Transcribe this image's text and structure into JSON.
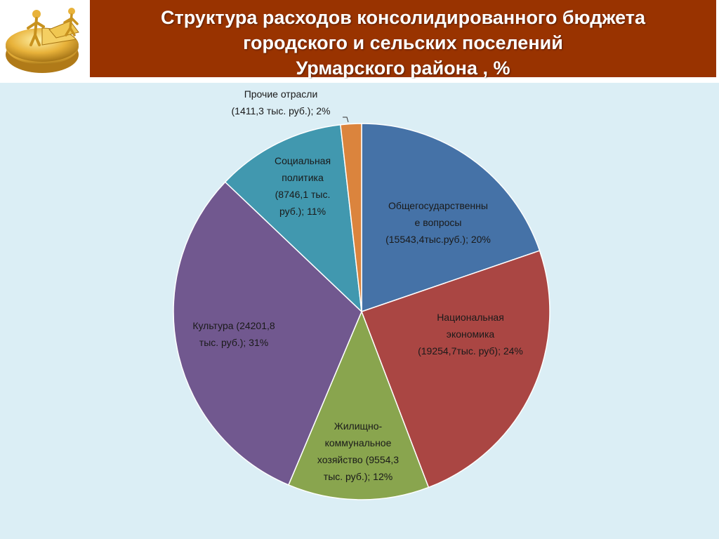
{
  "header": {
    "title_lines": [
      "Структура расходов консолидированного  бюджета",
      "городского и сельских поселений",
      "Урмарского района , %"
    ],
    "bar_color": "#993300",
    "logo_icon": "gold-pie-chart-figures-icon"
  },
  "chart_data": {
    "type": "pie",
    "title": "Структура расходов консолидированного  бюджета городского и сельских поселений Урмарского района , %",
    "legend": "none (data labels on slices)",
    "slices": [
      {
        "amount": 15543.4,
        "percent": 20,
        "color": "#4572a7",
        "label_lines": [
          "Общегосударственны",
          "е вопросы",
          "(15543,4тыс.руб.); 20%"
        ]
      },
      {
        "amount": 19254.7,
        "percent": 24,
        "color": "#aa4643",
        "label_lines": [
          "Национальная",
          "экономика",
          "(19254,7тыс. руб); 24%"
        ]
      },
      {
        "amount": 9554.3,
        "percent": 12,
        "color": "#89a54e",
        "label_lines": [
          "Жилищно-",
          "коммунальное",
          "хозяйство  (9554,3",
          "тыс. руб.); 12%"
        ]
      },
      {
        "amount": 24201.8,
        "percent": 31,
        "color": "#71588f",
        "label_lines": [
          "Культура  (24201,8",
          "тыс. руб.); 31%"
        ]
      },
      {
        "amount": 8746.1,
        "percent": 11,
        "color": "#4198af",
        "label_lines": [
          "Социальная",
          "политика",
          "(8746,1 тыс.",
          "руб.); 11%"
        ]
      },
      {
        "amount": 1411.3,
        "percent": 2,
        "color": "#db843d",
        "label_lines": [
          "Прочие отрасли",
          "(1411,3 тыс. руб.); 2%"
        ]
      }
    ]
  }
}
